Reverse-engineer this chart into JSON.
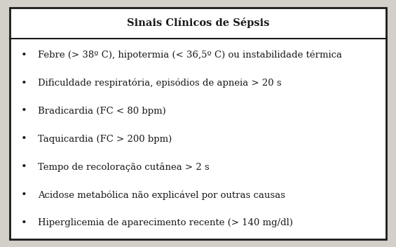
{
  "title": "Sinais Clínicos de Sépsis",
  "items": [
    "Febre (> 38º C), hipotermia (< 36,5º C) ou instabilidade térmica",
    "Dificuldade respiratória, episódios de apneia > 20 s",
    "Bradicardia (FC < 80 bpm)",
    "Taquicardia (FC > 200 bpm)",
    "Tempo de recoloração cutânea > 2 s",
    "Acidose metabólica não explicável por outras causas",
    "Hiperglicemia de aparecimento recente (> 140 mg/dl)"
  ],
  "fig_bg_color": "#d3cfc9",
  "table_bg_color": "#ffffff",
  "border_color": "#1a1a1a",
  "text_color": "#1a1a1a",
  "title_fontsize": 10.5,
  "item_fontsize": 9.5,
  "bullet": "•",
  "border_lw": 2.0,
  "sep_lw": 1.5
}
